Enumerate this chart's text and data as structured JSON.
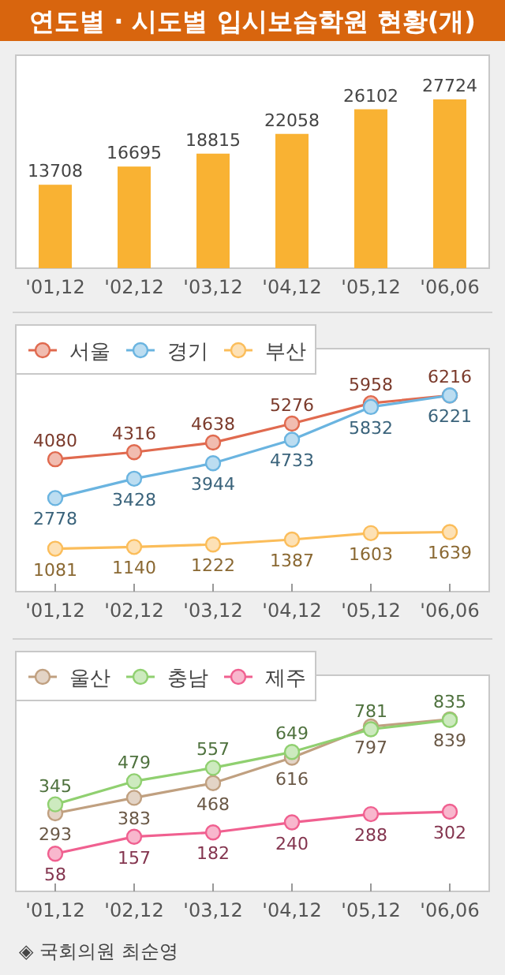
{
  "chart_data": [
    {
      "type": "bar",
      "title": "연도별 · 시도별 입시보습학원 현황(개)",
      "categories": [
        "'01,12",
        "'02,12",
        "'03,12",
        "'04,12",
        "'05,12",
        "'06,06"
      ],
      "values": [
        13708,
        16695,
        18815,
        22058,
        26102,
        27724
      ],
      "color": "#f9b233",
      "data_labels": true
    },
    {
      "type": "line",
      "categories": [
        "'01,12",
        "'02,12",
        "'03,12",
        "'04,12",
        "'05,12",
        "'06,06"
      ],
      "legend": "top left",
      "marker": "circle",
      "data_labels": true,
      "series": [
        {
          "name": "서울",
          "color": "#e06a4f",
          "values": [
            4080,
            4316,
            4638,
            5276,
            5958,
            6216
          ]
        },
        {
          "name": "경기",
          "color": "#6ab4e0",
          "values": [
            2778,
            3428,
            3944,
            4733,
            5832,
            6221
          ]
        },
        {
          "name": "부산",
          "color": "#fbbd5a",
          "values": [
            1081,
            1140,
            1222,
            1387,
            1603,
            1639
          ]
        }
      ]
    },
    {
      "type": "line",
      "categories": [
        "'01,12",
        "'02,12",
        "'03,12",
        "'04,12",
        "'05,12",
        "'06,06"
      ],
      "legend": "top left",
      "marker": "circle",
      "data_labels": true,
      "annotations": [
        "◈ 국회의원 최순영"
      ],
      "series": [
        {
          "name": "울산",
          "color": "#c0a080",
          "values": [
            293,
            383,
            468,
            616,
            797,
            839
          ]
        },
        {
          "name": "충남",
          "color": "#90d070",
          "values": [
            345,
            479,
            557,
            649,
            781,
            835
          ]
        },
        {
          "name": "제주",
          "color": "#f06090",
          "values": [
            58,
            157,
            182,
            240,
            288,
            302
          ]
        }
      ]
    }
  ]
}
